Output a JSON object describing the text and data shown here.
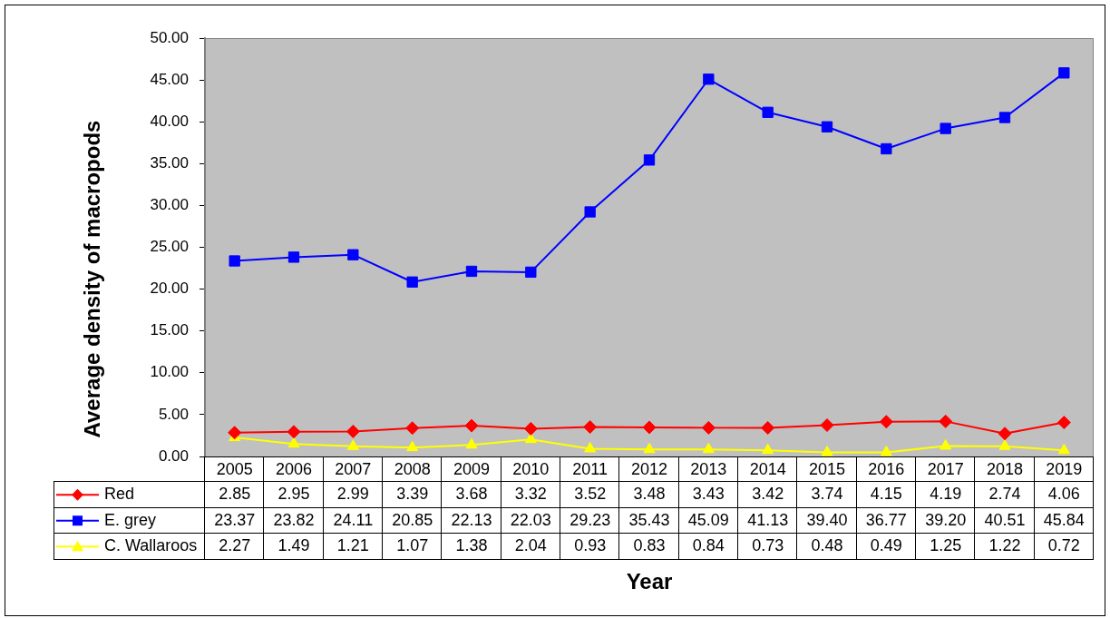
{
  "chart_data": {
    "type": "line",
    "xlabel": "Year",
    "ylabel": "Average density of macropods",
    "categories": [
      "2005",
      "2006",
      "2007",
      "2008",
      "2009",
      "2010",
      "2011",
      "2012",
      "2013",
      "2014",
      "2015",
      "2016",
      "2017",
      "2018",
      "2019"
    ],
    "ylim": [
      0,
      50
    ],
    "yticks": [
      {
        "value": 0,
        "label": "0.00"
      },
      {
        "value": 5,
        "label": "5.00"
      },
      {
        "value": 10,
        "label": "10.00"
      },
      {
        "value": 15,
        "label": "15.00"
      },
      {
        "value": 20,
        "label": "20.00"
      },
      {
        "value": 25,
        "label": "25.00"
      },
      {
        "value": 30,
        "label": "30.00"
      },
      {
        "value": 35,
        "label": "35.00"
      },
      {
        "value": 40,
        "label": "40.00"
      },
      {
        "value": 45,
        "label": "45.00"
      },
      {
        "value": 50,
        "label": "50.00"
      }
    ],
    "legend": "bottom left",
    "series": [
      {
        "name": "Red",
        "color": "#ff0000",
        "marker": "diamond",
        "values": [
          2.85,
          2.95,
          2.99,
          3.39,
          3.68,
          3.32,
          3.52,
          3.48,
          3.43,
          3.42,
          3.74,
          4.15,
          4.19,
          2.74,
          4.06
        ],
        "value_labels": [
          "2.85",
          "2.95",
          "2.99",
          "3.39",
          "3.68",
          "3.32",
          "3.52",
          "3.48",
          "3.43",
          "3.42",
          "3.74",
          "4.15",
          "4.19",
          "2.74",
          "4.06"
        ]
      },
      {
        "name": "E. grey",
        "color": "#0000ff",
        "marker": "square",
        "values": [
          23.37,
          23.82,
          24.11,
          20.85,
          22.13,
          22.03,
          29.23,
          35.43,
          45.09,
          41.13,
          39.4,
          36.77,
          39.2,
          40.51,
          45.84
        ],
        "value_labels": [
          "23.37",
          "23.82",
          "24.11",
          "20.85",
          "22.13",
          "22.03",
          "29.23",
          "35.43",
          "45.09",
          "41.13",
          "39.40",
          "36.77",
          "39.20",
          "40.51",
          "45.84"
        ]
      },
      {
        "name": "C. Wallaroos",
        "color": "#ffff00",
        "marker": "triangle",
        "values": [
          2.27,
          1.49,
          1.21,
          1.07,
          1.38,
          2.04,
          0.93,
          0.83,
          0.84,
          0.73,
          0.48,
          0.49,
          1.25,
          1.22,
          0.72
        ],
        "value_labels": [
          "2.27",
          "1.49",
          "1.21",
          "1.07",
          "1.38",
          "2.04",
          "0.93",
          "0.83",
          "0.84",
          "0.73",
          "0.48",
          "0.49",
          "1.25",
          "1.22",
          "0.72"
        ]
      }
    ]
  }
}
